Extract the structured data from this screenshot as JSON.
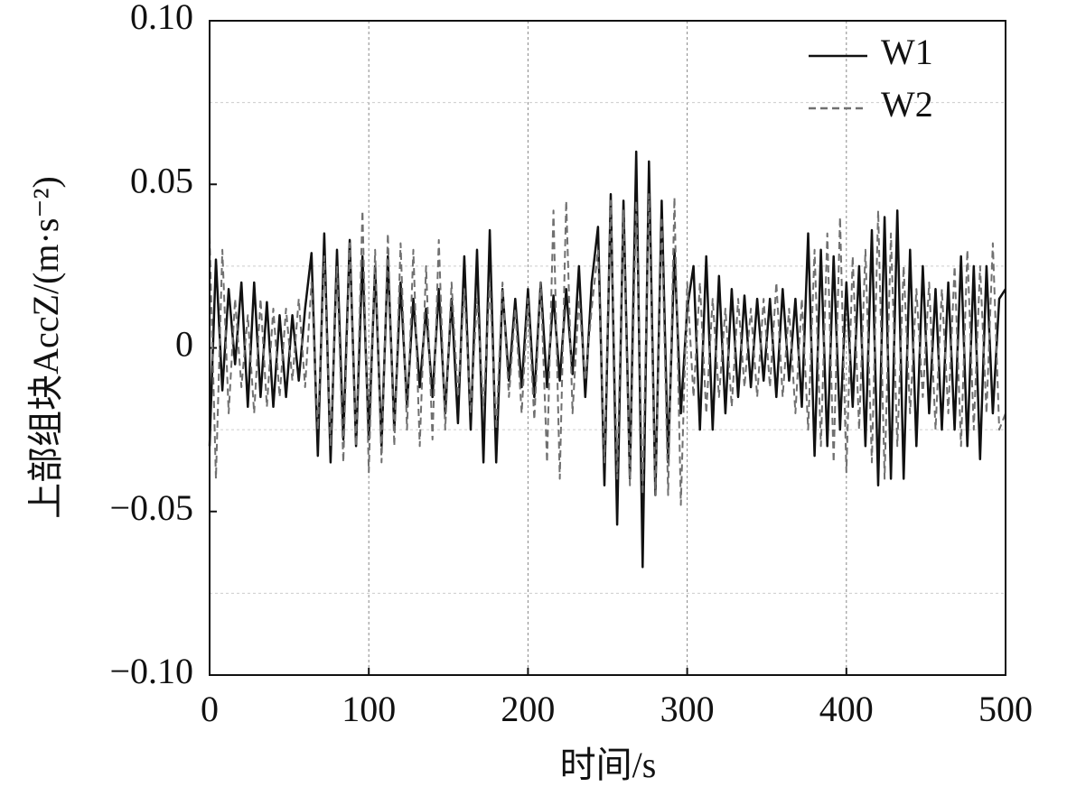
{
  "chart_data": {
    "type": "line",
    "xlabel": "时间/s",
    "ylabel": "上部组块AccZ/(m·s⁻²)",
    "xlim": [
      0,
      500
    ],
    "ylim": [
      -0.1,
      0.1
    ],
    "xticks": [
      0,
      100,
      200,
      300,
      400,
      500
    ],
    "yticks": [
      {
        "value": -0.1,
        "label": "−0.10"
      },
      {
        "value": -0.05,
        "label": "−0.05"
      },
      0,
      {
        "value": 0.05,
        "label": "0.05"
      },
      {
        "value": 0.1,
        "label": "0.10"
      }
    ],
    "minor_yticks": [
      -0.075,
      -0.025,
      0.025,
      0.075
    ],
    "grid": true,
    "legend": "upper right",
    "x": [
      0,
      4,
      8,
      12,
      16,
      20,
      24,
      28,
      32,
      36,
      40,
      44,
      48,
      52,
      56,
      60,
      64,
      68,
      72,
      76,
      80,
      84,
      88,
      92,
      96,
      100,
      104,
      108,
      112,
      116,
      120,
      124,
      128,
      132,
      136,
      140,
      144,
      148,
      152,
      156,
      160,
      164,
      168,
      172,
      176,
      180,
      184,
      188,
      192,
      196,
      200,
      204,
      208,
      212,
      216,
      220,
      224,
      228,
      232,
      236,
      240,
      244,
      248,
      252,
      256,
      260,
      264,
      268,
      272,
      276,
      280,
      284,
      288,
      292,
      296,
      300,
      304,
      308,
      312,
      316,
      320,
      324,
      328,
      332,
      336,
      340,
      344,
      348,
      352,
      356,
      360,
      364,
      368,
      372,
      376,
      380,
      384,
      388,
      392,
      396,
      400,
      404,
      408,
      412,
      416,
      420,
      424,
      428,
      432,
      436,
      440,
      444,
      448,
      452,
      456,
      460,
      464,
      468,
      472,
      476,
      480,
      484,
      488,
      492,
      496,
      500
    ],
    "series": [
      {
        "name": "W1",
        "color": "#111111",
        "dash": "solid",
        "values": [
          -0.03,
          0.027,
          -0.013,
          0.018,
          -0.005,
          0.02,
          -0.018,
          0.02,
          -0.015,
          0.014,
          -0.018,
          0.01,
          -0.015,
          0.01,
          -0.01,
          0.012,
          0.029,
          -0.033,
          0.035,
          -0.035,
          0.03,
          -0.028,
          0.033,
          -0.03,
          0.028,
          -0.028,
          0.025,
          -0.03,
          0.028,
          -0.025,
          0.02,
          -0.018,
          0.015,
          -0.012,
          0.012,
          -0.015,
          0.018,
          -0.02,
          0.015,
          -0.023,
          0.028,
          -0.025,
          0.03,
          -0.035,
          0.036,
          -0.035,
          0.018,
          -0.01,
          0.015,
          -0.012,
          0.018,
          -0.015,
          0.02,
          -0.012,
          0.016,
          -0.01,
          0.018,
          -0.008,
          0.025,
          -0.015,
          0.02,
          0.037,
          -0.042,
          0.047,
          -0.054,
          0.045,
          -0.04,
          0.06,
          -0.067,
          0.057,
          -0.045,
          0.045,
          -0.035,
          0.03,
          -0.02,
          0.012,
          0.025,
          -0.025,
          0.028,
          -0.025,
          0.022,
          -0.02,
          0.018,
          -0.015,
          0.016,
          -0.012,
          0.015,
          -0.01,
          0.015,
          -0.015,
          0.018,
          -0.01,
          0.015,
          -0.018,
          0.035,
          -0.033,
          0.03,
          -0.03,
          0.028,
          -0.025,
          0.02,
          -0.018,
          0.025,
          -0.03,
          0.036,
          -0.042,
          0.04,
          -0.04,
          0.042,
          -0.04,
          0.03,
          -0.03,
          0.025,
          -0.02,
          0.018,
          -0.025,
          0.02,
          -0.025,
          0.028,
          -0.03,
          0.025,
          -0.034,
          0.025,
          -0.02,
          0.015,
          0.018
        ]
      },
      {
        "name": "W2",
        "color": "#707070",
        "dash": "dashed",
        "values": [
          0.034,
          -0.04,
          0.03,
          -0.02,
          0.015,
          -0.012,
          0.01,
          -0.02,
          0.015,
          -0.018,
          0.012,
          -0.015,
          0.012,
          -0.01,
          0.015,
          -0.012,
          0.02,
          -0.025,
          0.028,
          -0.03,
          0.025,
          -0.035,
          0.032,
          -0.03,
          0.042,
          -0.038,
          0.03,
          -0.035,
          0.035,
          -0.03,
          0.032,
          -0.025,
          0.03,
          -0.03,
          0.025,
          -0.028,
          0.033,
          -0.025,
          0.02,
          -0.015,
          0.018,
          -0.02,
          0.015,
          -0.018,
          0.02,
          -0.025,
          0.02,
          -0.015,
          0.012,
          -0.02,
          0.015,
          -0.022,
          0.02,
          -0.035,
          0.042,
          -0.04,
          0.045,
          -0.02,
          0.015,
          -0.01,
          0.012,
          0.03,
          -0.035,
          0.045,
          -0.04,
          0.042,
          -0.042,
          0.045,
          -0.045,
          0.047,
          -0.045,
          0.04,
          -0.045,
          0.046,
          -0.048,
          0.02,
          -0.015,
          0.02,
          -0.02,
          0.015,
          -0.015,
          0.012,
          -0.018,
          0.015,
          -0.012,
          0.012,
          -0.015,
          0.015,
          -0.012,
          0.02,
          -0.015,
          0.012,
          -0.02,
          0.015,
          -0.025,
          0.03,
          -0.03,
          0.035,
          -0.035,
          0.04,
          -0.038,
          0.028,
          -0.025,
          0.03,
          -0.035,
          0.042,
          -0.04,
          0.035,
          -0.03,
          0.025,
          -0.02,
          0.018,
          -0.015,
          0.02,
          -0.025,
          0.018,
          -0.02,
          0.025,
          -0.03,
          0.03,
          -0.025,
          0.025,
          -0.02,
          0.032,
          -0.025,
          -0.02
        ]
      }
    ]
  }
}
